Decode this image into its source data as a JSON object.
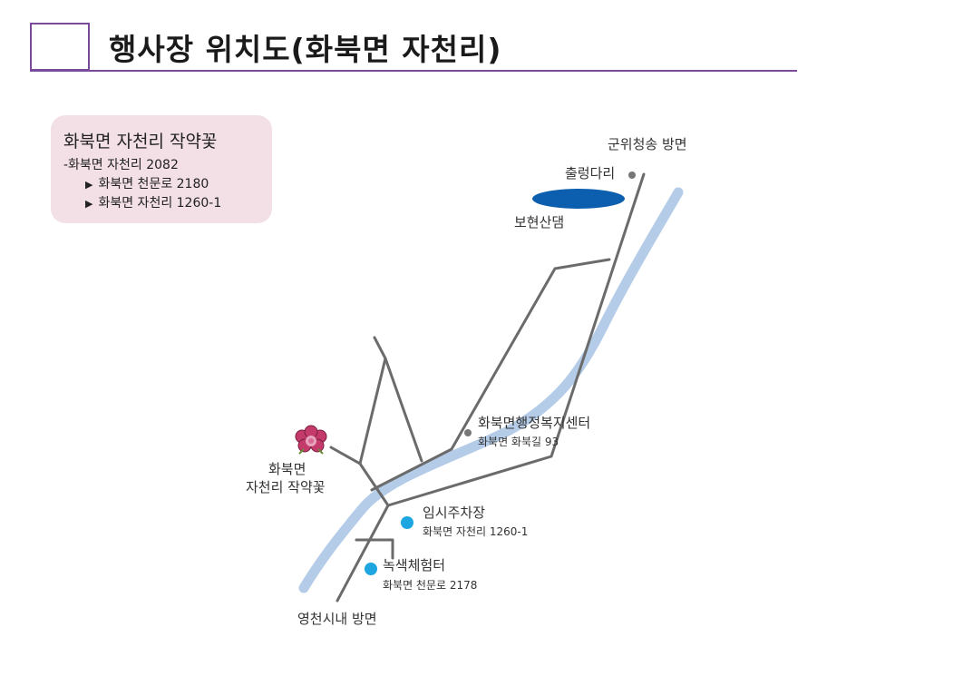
{
  "header": {
    "title": "행사장 위치도(화북면 자천리)"
  },
  "info_box": {
    "title": "화북면 자천리 작약꽃",
    "lines": [
      "-화북면 자천리 2082",
      "화북면 천문로 2180",
      "화북면 자천리 1260-1"
    ]
  },
  "map": {
    "labels": {
      "top_direction": "군위청송 방면",
      "chulleong_bridge": "출렁다리",
      "dam": "보현산댐",
      "office_name": "화북면행정복지센터",
      "office_address": "화북면 화북길 93",
      "flower_place_line1": "화북면",
      "flower_place_line2": "자천리 작약꽃",
      "parking_name": "임시주차장",
      "parking_address": "화북면 자천리 1260-1",
      "green_center_name": "녹색체험터",
      "green_center_address": "화북면 천문로 2178",
      "bottom_direction": "영천시내 방면"
    },
    "colors": {
      "river": "#b4cce8",
      "road": "#6b6b6b",
      "dam": "#0b5fae",
      "poi_blue": "#1ea6e0",
      "poi_gray": "#777777",
      "flower": "#c43a6a",
      "accent": "#7a4a9c"
    },
    "icons": {
      "flower": "peony-flower-icon",
      "marker": "circle-marker-icon"
    }
  }
}
